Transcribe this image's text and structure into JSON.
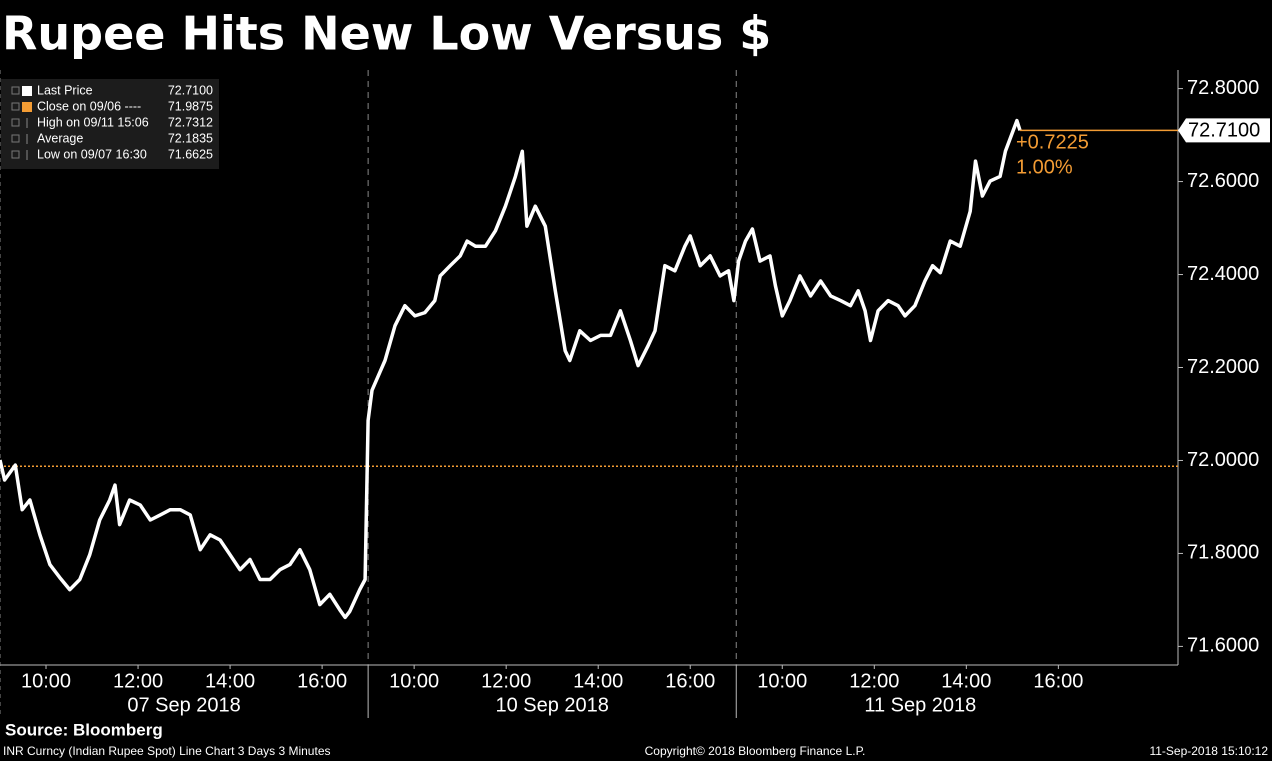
{
  "chart_data": {
    "type": "line",
    "title": "Rupee Hits New Low Versus $",
    "sessions": [
      {
        "value": "2018-09-07",
        "label": "07 Sep 2018"
      },
      {
        "value": "2018-09-10",
        "label": "10 Sep 2018"
      },
      {
        "value": "2018-09-11",
        "label": "11 Sep 2018"
      }
    ],
    "xlim": [
      "2018-09-07 09:00",
      "2018-09-11 18:36"
    ],
    "xticks": [
      {
        "value": "2018-09-07 10:00",
        "label": "10:00"
      },
      {
        "value": "2018-09-07 12:00",
        "label": "12:00"
      },
      {
        "value": "2018-09-07 14:00",
        "label": "14:00"
      },
      {
        "value": "2018-09-07 16:00",
        "label": "16:00"
      },
      {
        "value": "2018-09-10 10:00",
        "label": "10:00"
      },
      {
        "value": "2018-09-10 12:00",
        "label": "12:00"
      },
      {
        "value": "2018-09-10 14:00",
        "label": "14:00"
      },
      {
        "value": "2018-09-10 16:00",
        "label": "16:00"
      },
      {
        "value": "2018-09-11 10:00",
        "label": "10:00"
      },
      {
        "value": "2018-09-11 12:00",
        "label": "12:00"
      },
      {
        "value": "2018-09-11 14:00",
        "label": "14:00"
      },
      {
        "value": "2018-09-11 16:00",
        "label": "16:00"
      }
    ],
    "ylim": [
      71.56,
      72.84
    ],
    "yticks": [
      {
        "value": 71.6,
        "label": "71.6000"
      },
      {
        "value": 71.8,
        "label": "71.8000"
      },
      {
        "value": 72.0,
        "label": "72.0000"
      },
      {
        "value": 72.2,
        "label": "72.2000"
      },
      {
        "value": 72.4,
        "label": "72.4000"
      },
      {
        "value": 72.6,
        "label": "72.6000"
      },
      {
        "value": 72.8,
        "label": "72.8000"
      }
    ],
    "x": [
      "2018-09-07 09:00",
      "2018-09-07 09:06",
      "2018-09-07 09:20",
      "2018-09-07 09:29",
      "2018-09-07 09:39",
      "2018-09-07 09:52",
      "2018-09-07 10:05",
      "2018-09-07 10:18",
      "2018-09-07 10:31",
      "2018-09-07 10:44",
      "2018-09-07 10:57",
      "2018-09-07 11:10",
      "2018-09-07 11:23",
      "2018-09-07 11:30",
      "2018-09-07 11:36",
      "2018-09-07 11:49",
      "2018-09-07 12:03",
      "2018-09-07 12:16",
      "2018-09-07 12:29",
      "2018-09-07 12:42",
      "2018-09-07 12:55",
      "2018-09-07 13:08",
      "2018-09-07 13:21",
      "2018-09-07 13:34",
      "2018-09-07 13:47",
      "2018-09-07 14:00",
      "2018-09-07 14:13",
      "2018-09-07 14:26",
      "2018-09-07 14:39",
      "2018-09-07 14:52",
      "2018-09-07 15:05",
      "2018-09-07 15:18",
      "2018-09-07 15:31",
      "2018-09-07 15:44",
      "2018-09-07 15:57",
      "2018-09-07 16:10",
      "2018-09-07 16:23",
      "2018-09-07 16:30",
      "2018-09-07 16:36",
      "2018-09-07 16:49",
      "2018-09-07 16:56",
      "2018-09-10 09:00",
      "2018-09-10 09:05",
      "2018-09-10 09:22",
      "2018-09-10 09:35",
      "2018-09-10 09:48",
      "2018-09-10 10:01",
      "2018-09-10 10:14",
      "2018-09-10 10:27",
      "2018-09-10 10:34",
      "2018-09-10 10:47",
      "2018-09-10 11:00",
      "2018-09-10 11:09",
      "2018-09-10 11:20",
      "2018-09-10 11:33",
      "2018-09-10 11:46",
      "2018-09-10 11:59",
      "2018-09-10 12:12",
      "2018-09-10 12:21",
      "2018-09-10 12:27",
      "2018-09-10 12:38",
      "2018-09-10 12:51",
      "2018-09-10 13:04",
      "2018-09-10 13:17",
      "2018-09-10 13:23",
      "2018-09-10 13:36",
      "2018-09-10 13:50",
      "2018-09-10 14:03",
      "2018-09-10 14:16",
      "2018-09-10 14:29",
      "2018-09-10 14:42",
      "2018-09-10 14:52",
      "2018-09-10 15:05",
      "2018-09-10 15:14",
      "2018-09-10 15:27",
      "2018-09-10 15:40",
      "2018-09-10 15:53",
      "2018-09-10 16:00",
      "2018-09-10 16:13",
      "2018-09-10 16:26",
      "2018-09-10 16:39",
      "2018-09-10 16:50",
      "2018-09-10 16:57",
      "2018-09-11 09:03",
      "2018-09-11 09:12",
      "2018-09-11 09:21",
      "2018-09-11 09:31",
      "2018-09-11 09:44",
      "2018-09-11 09:51",
      "2018-09-11 10:00",
      "2018-09-11 10:10",
      "2018-09-11 10:23",
      "2018-09-11 10:37",
      "2018-09-11 10:50",
      "2018-09-11 11:03",
      "2018-09-11 11:16",
      "2018-09-11 11:29",
      "2018-09-11 11:39",
      "2018-09-11 11:48",
      "2018-09-11 11:55",
      "2018-09-11 12:05",
      "2018-09-11 12:18",
      "2018-09-11 12:31",
      "2018-09-11 12:40",
      "2018-09-11 12:53",
      "2018-09-11 13:06",
      "2018-09-11 13:16",
      "2018-09-11 13:26",
      "2018-09-11 13:39",
      "2018-09-11 13:52",
      "2018-09-11 14:05",
      "2018-09-11 14:12",
      "2018-09-11 14:21",
      "2018-09-11 14:31",
      "2018-09-11 14:44",
      "2018-09-11 14:51",
      "2018-09-11 15:06",
      "2018-09-11 15:10"
    ],
    "series": [
      {
        "name": "Last Price",
        "color": "#ffffff",
        "values": [
          72.001,
          71.958,
          71.99,
          71.894,
          71.915,
          71.84,
          71.776,
          71.748,
          71.722,
          71.744,
          71.797,
          71.872,
          71.915,
          71.947,
          71.862,
          71.915,
          71.904,
          71.872,
          71.883,
          71.894,
          71.894,
          71.883,
          71.808,
          71.84,
          71.829,
          71.797,
          71.765,
          71.787,
          71.744,
          71.744,
          71.765,
          71.776,
          71.808,
          71.765,
          71.69,
          71.712,
          71.679,
          71.6625,
          71.675,
          71.722,
          71.744,
          72.086,
          72.151,
          72.215,
          72.29,
          72.333,
          72.311,
          72.318,
          72.344,
          72.397,
          72.419,
          72.44,
          72.472,
          72.461,
          72.461,
          72.494,
          72.547,
          72.611,
          72.665,
          72.504,
          72.547,
          72.504,
          72.365,
          72.236,
          72.215,
          72.279,
          72.258,
          72.269,
          72.269,
          72.322,
          72.258,
          72.204,
          72.247,
          72.279,
          72.419,
          72.408,
          72.461,
          72.483,
          72.419,
          72.44,
          72.397,
          72.408,
          72.344,
          72.429,
          72.472,
          72.498,
          72.429,
          72.44,
          72.376,
          72.311,
          72.344,
          72.397,
          72.354,
          72.386,
          72.354,
          72.344,
          72.333,
          72.365,
          72.322,
          72.258,
          72.322,
          72.344,
          72.333,
          72.311,
          72.333,
          72.386,
          72.419,
          72.404,
          72.472,
          72.461,
          72.536,
          72.644,
          72.569,
          72.601,
          72.611,
          72.665,
          72.7312,
          72.71
        ]
      }
    ],
    "legend": [
      {
        "label": "Last Price",
        "value": 72.71,
        "value_label": "72.7100",
        "color": "#ffffff"
      },
      {
        "label": "Close on 09/06 ----",
        "value": 71.9875,
        "value_label": "71.9875",
        "color": "#f39c34"
      },
      {
        "label": "High on 09/11 15:06",
        "value": 72.7312,
        "value_label": "72.7312"
      },
      {
        "label": "Average",
        "value": 72.1835,
        "value_label": "72.1835"
      },
      {
        "label": "Low on 09/07 16:30",
        "value": 71.6625,
        "value_label": "71.6625"
      }
    ],
    "change": {
      "value": 0.7225,
      "label": "+0.7225"
    },
    "change_pct": {
      "value": 1.0,
      "label": "1.00%"
    },
    "footer": {
      "source": "Source: Bloomberg",
      "description": "INR Curncy (Indian Rupee Spot) Line Chart 3 Days 3 Minutes",
      "copyright": "Copyright© 2018 Bloomberg Finance L.P.",
      "timestamp": "11-Sep-2018 15:10:12"
    }
  }
}
